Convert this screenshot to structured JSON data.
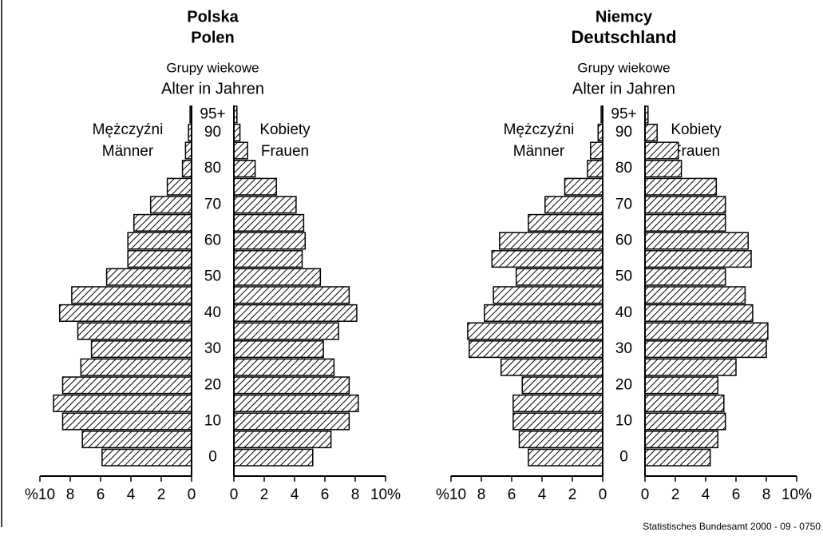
{
  "chart_data": [
    {
      "type": "pyramid",
      "title": [
        "Polska",
        "Polen"
      ],
      "y_label": [
        "Grupy wiekowe",
        "Alter in Jahren"
      ],
      "categories": [
        "0",
        null,
        "10",
        null,
        "20",
        null,
        "30",
        null,
        "40",
        null,
        "50",
        null,
        "60",
        null,
        "70",
        null,
        "80",
        null,
        "90",
        "95+"
      ],
      "series": [
        {
          "name": [
            "Mężczyźni",
            "Männer"
          ],
          "side": "left",
          "values": [
            5.9,
            7.2,
            8.5,
            9.1,
            8.5,
            7.3,
            6.6,
            7.5,
            8.7,
            7.9,
            5.6,
            4.2,
            4.2,
            3.8,
            2.7,
            1.6,
            0.6,
            0.4,
            0.2,
            0.1
          ]
        },
        {
          "name": [
            "Kobiety",
            "Frauen"
          ],
          "side": "right",
          "values": [
            5.2,
            6.4,
            7.6,
            8.2,
            7.6,
            6.6,
            5.9,
            6.9,
            8.1,
            7.6,
            5.7,
            4.5,
            4.7,
            4.6,
            4.1,
            2.8,
            1.4,
            0.9,
            0.4,
            0.2
          ]
        }
      ],
      "xlim": [
        0,
        10
      ],
      "xticks_left": [
        {
          "value": 10,
          "label": "%10"
        },
        8,
        6,
        4,
        2,
        0
      ],
      "xticks_right": [
        0,
        2,
        4,
        6,
        8,
        {
          "value": 10,
          "label": "10%"
        }
      ]
    },
    {
      "type": "pyramid",
      "title": [
        "Niemcy",
        "Deutschland"
      ],
      "y_label": [
        "Grupy wiekowe",
        "Alter in Jahren"
      ],
      "categories": [
        "0",
        null,
        "10",
        null,
        "20",
        null,
        "30",
        null,
        "40",
        null,
        "50",
        null,
        "60",
        null,
        "70",
        null,
        "80",
        null,
        "90",
        "95+"
      ],
      "series": [
        {
          "name": [
            "Mężczyźni",
            "Männer"
          ],
          "side": "left",
          "values": [
            4.9,
            5.5,
            5.9,
            5.9,
            5.3,
            6.7,
            8.8,
            8.9,
            7.8,
            7.2,
            5.7,
            7.3,
            6.8,
            4.9,
            3.8,
            2.5,
            1.0,
            0.8,
            0.3,
            0.1
          ]
        },
        {
          "name": [
            "Kobiety",
            "Frauen"
          ],
          "side": "right",
          "values": [
            4.3,
            4.8,
            5.3,
            5.2,
            4.8,
            6.0,
            8.0,
            8.1,
            7.1,
            6.6,
            5.3,
            7.0,
            6.8,
            5.3,
            5.3,
            4.7,
            2.4,
            2.2,
            0.8,
            0.2
          ]
        }
      ],
      "xlim": [
        0,
        10
      ],
      "xticks_left": [
        {
          "value": 10,
          "label": "%10"
        },
        8,
        6,
        4,
        2,
        0
      ],
      "xticks_right": [
        0,
        2,
        4,
        6,
        8,
        {
          "value": 10,
          "label": "10%"
        }
      ]
    }
  ],
  "source": "Statistisches Bundesamt 2000 - 09 - 0750"
}
